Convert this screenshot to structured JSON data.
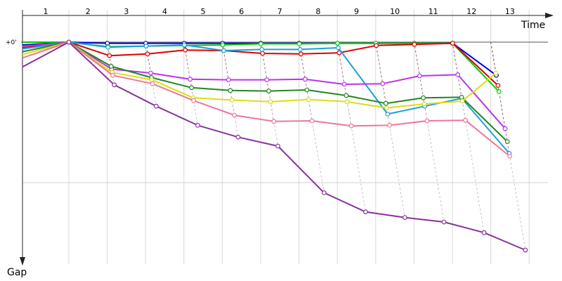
{
  "chart_data": {
    "type": "line",
    "subtype": "race-gap-chart",
    "x_axis_label": "Time",
    "y_axis_label": "Gap",
    "y_zero_label": "+0'",
    "lap_labels": [
      "1",
      "2",
      "3",
      "4",
      "5",
      "6",
      "7",
      "8",
      "9",
      "10",
      "11",
      "12",
      "13"
    ],
    "grid": true,
    "series": [
      {
        "color": "#0000dd",
        "values": [
          1.0,
          0.0,
          0.4,
          0.4,
          0.4,
          0.4,
          0.4,
          0.4,
          0.4,
          0.4,
          0.4,
          0.4,
          11.8
        ]
      },
      {
        "color": "#00cc00",
        "values": [
          0.0,
          0.0,
          1.6,
          1.4,
          1.2,
          1.0,
          0.6,
          0.6,
          0.4,
          0.4,
          0.4,
          0.4,
          17.6
        ]
      },
      {
        "color": "#dd0000",
        "values": [
          2.0,
          0.0,
          4.8,
          4.2,
          2.8,
          3.0,
          4.0,
          4.2,
          3.8,
          1.2,
          0.8,
          0.4,
          15.4
        ]
      },
      {
        "color": "#1e9ee0",
        "values": [
          2.4,
          0.0,
          1.8,
          1.4,
          1.0,
          3.0,
          2.6,
          2.6,
          2.0,
          25.6,
          22.8,
          20.0,
          39.6
        ]
      },
      {
        "color": "#bb33ee",
        "values": [
          1.4,
          0.0,
          9.6,
          11.0,
          13.2,
          13.4,
          13.4,
          13.2,
          15.0,
          14.8,
          12.0,
          11.6,
          30.8
        ]
      },
      {
        "color": "#228822",
        "values": [
          3.4,
          0.0,
          8.6,
          12.6,
          16.2,
          17.2,
          17.4,
          17.0,
          19.0,
          21.8,
          19.8,
          19.6,
          35.4
        ]
      },
      {
        "color": "#dddd11",
        "values": [
          4.4,
          0.0,
          10.8,
          13.4,
          19.8,
          20.6,
          21.2,
          20.4,
          21.2,
          23.4,
          22.0,
          21.0,
          11.0
        ]
      },
      {
        "color": "#ee7799",
        "values": [
          5.6,
          0.0,
          11.8,
          14.8,
          20.8,
          26.0,
          28.2,
          28.0,
          29.8,
          29.6,
          28.0,
          27.8,
          40.6
        ]
      },
      {
        "color": "#883399",
        "values": [
          8.8,
          0.0,
          15.2,
          22.8,
          29.6,
          33.8,
          37.0,
          53.6,
          60.4,
          62.4,
          64.0,
          67.8,
          74.0
        ]
      }
    ]
  }
}
